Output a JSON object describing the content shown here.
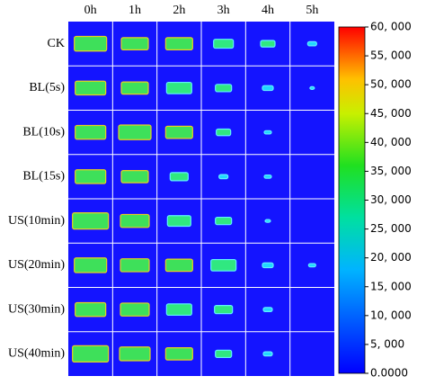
{
  "columns": [
    "0h",
    "1h",
    "2h",
    "3h",
    "4h",
    "5h"
  ],
  "rows": [
    "CK",
    "BL(5s)",
    "BL(10s)",
    "BL(15s)",
    "US(10min)",
    "US(20min)",
    "US(30min)",
    "US(40min)"
  ],
  "colorbar": {
    "lim": [
      0,
      60000
    ],
    "ticks": [
      {
        "value": 0,
        "label": "0.0000"
      },
      {
        "value": 5000,
        "label": "5, 000"
      },
      {
        "value": 10000,
        "label": "10, 000"
      },
      {
        "value": 15000,
        "label": "15, 000"
      },
      {
        "value": 20000,
        "label": "20, 000"
      },
      {
        "value": 25000,
        "label": "25, 000"
      },
      {
        "value": 30000,
        "label": "30, 000"
      },
      {
        "value": 35000,
        "label": "35, 000"
      },
      {
        "value": 40000,
        "label": "40, 000"
      },
      {
        "value": 45000,
        "label": "45, 000"
      },
      {
        "value": 50000,
        "label": "50, 000"
      },
      {
        "value": 55000,
        "label": "55, 000"
      },
      {
        "value": 60000,
        "label": "60, 000"
      }
    ]
  }
}
